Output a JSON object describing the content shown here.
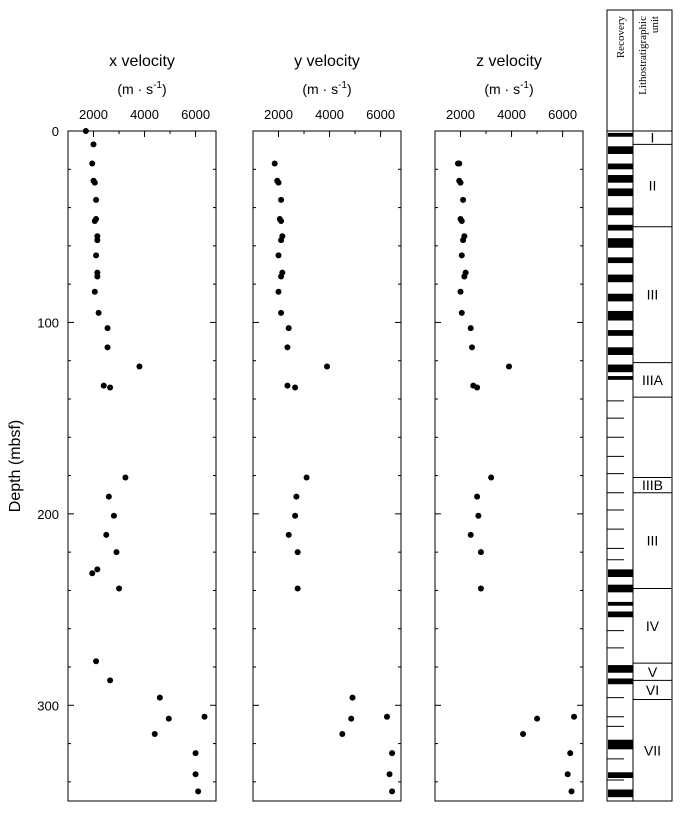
{
  "chart_data": {
    "type": "scatter",
    "y_axis": {
      "label": "Depth (mbsf)",
      "lim": [
        0,
        350
      ],
      "inverted": true,
      "ticks": [
        0,
        100,
        200,
        300
      ],
      "tick_labels": [
        "0",
        "100",
        "200",
        "300"
      ]
    },
    "x_axis": {
      "lim": [
        1000,
        6800
      ],
      "ticks": [
        2000,
        4000,
        6000
      ],
      "tick_labels": [
        "2000",
        "4000",
        "6000"
      ],
      "position": "top"
    },
    "panels": [
      {
        "title": "x velocity",
        "unit": "(m · s",
        "unit_sup": "-1",
        "unit_close": ")",
        "points": [
          [
            1700,
            0
          ],
          [
            2000,
            7
          ],
          [
            1950,
            17
          ],
          [
            2000,
            26
          ],
          [
            2050,
            27
          ],
          [
            2100,
            36
          ],
          [
            2100,
            46
          ],
          [
            2050,
            47
          ],
          [
            2150,
            55
          ],
          [
            2150,
            57
          ],
          [
            2100,
            65
          ],
          [
            2150,
            74
          ],
          [
            2150,
            76
          ],
          [
            2050,
            84
          ],
          [
            2200,
            95
          ],
          [
            2550,
            103
          ],
          [
            2550,
            113
          ],
          [
            3800,
            123
          ],
          [
            2400,
            133
          ],
          [
            2650,
            134
          ],
          [
            3250,
            181
          ],
          [
            2600,
            191
          ],
          [
            2800,
            201
          ],
          [
            2500,
            211
          ],
          [
            2900,
            220
          ],
          [
            2150,
            229
          ],
          [
            1950,
            231
          ],
          [
            3000,
            239
          ],
          [
            2100,
            277
          ],
          [
            2650,
            287
          ],
          [
            4600,
            296
          ],
          [
            4950,
            307
          ],
          [
            6350,
            306
          ],
          [
            4400,
            315
          ],
          [
            6000,
            325
          ],
          [
            6000,
            336
          ],
          [
            6100,
            345
          ]
        ]
      },
      {
        "title": "y velocity",
        "unit": "(m · s",
        "unit_sup": "-1",
        "unit_close": ")",
        "points": [
          [
            1850,
            17
          ],
          [
            1950,
            26
          ],
          [
            2000,
            27
          ],
          [
            2100,
            36
          ],
          [
            2050,
            46
          ],
          [
            2100,
            47
          ],
          [
            2150,
            55
          ],
          [
            2100,
            57
          ],
          [
            2000,
            65
          ],
          [
            2150,
            74
          ],
          [
            2100,
            76
          ],
          [
            2000,
            84
          ],
          [
            2100,
            95
          ],
          [
            2400,
            103
          ],
          [
            2350,
            113
          ],
          [
            3900,
            123
          ],
          [
            2350,
            133
          ],
          [
            2650,
            134
          ],
          [
            3100,
            181
          ],
          [
            2700,
            191
          ],
          [
            2650,
            201
          ],
          [
            2400,
            211
          ],
          [
            2750,
            220
          ],
          [
            2750,
            239
          ],
          [
            4900,
            296
          ],
          [
            4850,
            307
          ],
          [
            6250,
            306
          ],
          [
            4500,
            315
          ],
          [
            6450,
            325
          ],
          [
            6350,
            336
          ],
          [
            6450,
            345
          ]
        ]
      },
      {
        "title": "z velocity",
        "unit": "(m · s",
        "unit_sup": "-1",
        "unit_close": ")",
        "points": [
          [
            1950,
            17
          ],
          [
            1900,
            17
          ],
          [
            1950,
            26
          ],
          [
            2000,
            27
          ],
          [
            2100,
            36
          ],
          [
            2000,
            46
          ],
          [
            2050,
            47
          ],
          [
            2150,
            55
          ],
          [
            2100,
            57
          ],
          [
            2050,
            65
          ],
          [
            2200,
            74
          ],
          [
            2150,
            76
          ],
          [
            2000,
            84
          ],
          [
            2050,
            95
          ],
          [
            2400,
            103
          ],
          [
            2450,
            113
          ],
          [
            3900,
            123
          ],
          [
            2500,
            133
          ],
          [
            2650,
            134
          ],
          [
            3200,
            181
          ],
          [
            2650,
            191
          ],
          [
            2700,
            201
          ],
          [
            2400,
            211
          ],
          [
            2800,
            220
          ],
          [
            2800,
            239
          ],
          [
            5000,
            307
          ],
          [
            6450,
            306
          ],
          [
            4450,
            315
          ],
          [
            6300,
            325
          ],
          [
            6200,
            336
          ],
          [
            6350,
            345
          ]
        ]
      }
    ],
    "strip": {
      "recovery_label": "Recovery",
      "unit_header": "Lithostratigraphic unit",
      "recovered_intervals": [
        [
          1,
          3
        ],
        [
          8,
          12
        ],
        [
          17,
          20
        ],
        [
          23,
          27
        ],
        [
          30,
          34
        ],
        [
          40,
          44
        ],
        [
          49,
          52
        ],
        [
          56,
          61
        ],
        [
          66,
          69
        ],
        [
          75,
          79
        ],
        [
          85,
          89
        ],
        [
          94,
          99
        ],
        [
          104,
          107
        ],
        [
          113,
          117
        ],
        [
          122,
          126
        ],
        [
          128,
          130
        ],
        [
          229,
          233
        ],
        [
          237,
          241
        ],
        [
          246,
          248
        ],
        [
          251,
          254
        ],
        [
          279,
          283
        ],
        [
          286,
          289
        ],
        [
          318,
          323
        ],
        [
          335,
          338
        ],
        [
          344,
          348
        ]
      ],
      "core_ticks": [
        141,
        150,
        160,
        170,
        179,
        189,
        198,
        208,
        218,
        224,
        261,
        270,
        296,
        306,
        311,
        328,
        339
      ],
      "units": [
        {
          "label": "I",
          "top": 0,
          "bottom": 7
        },
        {
          "label": "II",
          "top": 7,
          "bottom": 50
        },
        {
          "label": "III",
          "top": 50,
          "bottom": 121
        },
        {
          "label": "IIIA",
          "top": 121,
          "bottom": 139
        },
        {
          "label": "",
          "top": 139,
          "bottom": 181
        },
        {
          "label": "IIIB",
          "top": 181,
          "bottom": 189
        },
        {
          "label": "III",
          "top": 189,
          "bottom": 239
        },
        {
          "label": "IV",
          "top": 239,
          "bottom": 278
        },
        {
          "label": "V",
          "top": 278,
          "bottom": 287
        },
        {
          "label": "VI",
          "top": 287,
          "bottom": 297
        },
        {
          "label": "VII",
          "top": 297,
          "bottom": 350
        }
      ]
    }
  }
}
